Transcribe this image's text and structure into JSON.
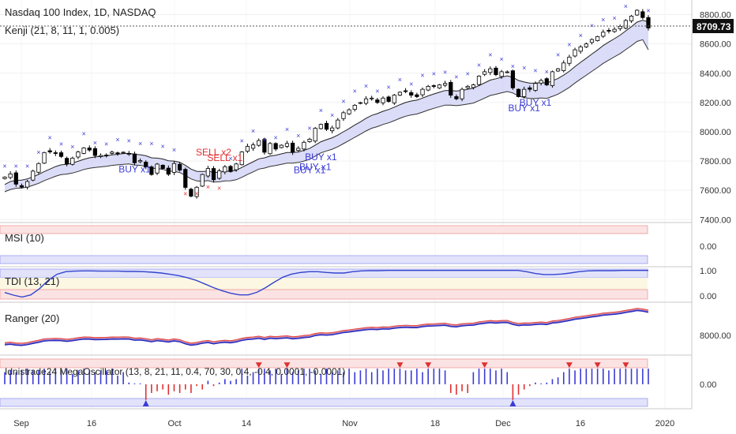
{
  "header": {
    "symbol_line": "Nasdaq 100 Index, 1D, NASDAQ",
    "study_line": "Kenji (21, 8, 11, 1, 0.005)"
  },
  "last_price": "8709.73",
  "colors": {
    "candle_up_fill": "#ffffff",
    "candle_down_fill": "#000000",
    "marker_blue": "#3b3bd6",
    "marker_red": "#e03030",
    "band_fill": "#cfd0f5",
    "band_fill_green": "#cfeccf",
    "pos_bar": "#3b3bd6",
    "neg_bar": "#e03030"
  },
  "chart_data": [
    {
      "type": "candlestick",
      "title": "Nasdaq 100 Index, 1D, NASDAQ",
      "ylim": [
        7380,
        8900
      ],
      "y_ticks": [
        "7400.00",
        "7600.00",
        "7800.00",
        "8000.00",
        "8200.00",
        "8400.00",
        "8600.00",
        "8800.00"
      ],
      "x_ticks": [
        "Sep",
        "16",
        "Oct",
        "14",
        "Nov",
        "18",
        "Dec",
        "16",
        "2020"
      ],
      "closes": [
        7690,
        7712,
        7642,
        7622,
        7660,
        7731,
        7783,
        7858,
        7862,
        7852,
        7831,
        7780,
        7820,
        7862,
        7889,
        7875,
        7838,
        7838,
        7840,
        7861,
        7850,
        7860,
        7851,
        7788,
        7803,
        7760,
        7708,
        7779,
        7749,
        7710,
        7783,
        7738,
        7620,
        7560,
        7621,
        7708,
        7749,
        7672,
        7733,
        7761,
        7728,
        7780,
        7862,
        7900,
        7910,
        7940,
        7860,
        7920,
        7882,
        7908,
        7920,
        7860,
        7887,
        7928,
        7949,
        8024,
        8050,
        8017,
        8026,
        8080,
        8130,
        8150,
        8181,
        8199,
        8225,
        8230,
        8200,
        8230,
        8207,
        8250,
        8270,
        8275,
        8250,
        8240,
        8290,
        8310,
        8311,
        8320,
        8330,
        8250,
        8225,
        8290,
        8310,
        8320,
        8380,
        8410,
        8430,
        8390,
        8410,
        8409,
        8300,
        8240,
        8290,
        8290,
        8330,
        8350,
        8320,
        8410,
        8430,
        8470,
        8510,
        8560,
        8580,
        8600,
        8630,
        8650,
        8680,
        8690,
        8700,
        8720,
        8760,
        8790,
        8830,
        8780,
        8709
      ],
      "upper_band": [
        7640,
        7660,
        7668,
        7670,
        7678,
        7692,
        7708,
        7728,
        7745,
        7762,
        7774,
        7778,
        7786,
        7798,
        7812,
        7822,
        7828,
        7832,
        7836,
        7842,
        7846,
        7851,
        7853,
        7846,
        7843,
        7836,
        7822,
        7820,
        7814,
        7802,
        7800,
        7792,
        7770,
        7745,
        7730,
        7728,
        7732,
        7722,
        7724,
        7730,
        7731,
        7738,
        7756,
        7776,
        7795,
        7815,
        7822,
        7834,
        7840,
        7849,
        7858,
        7858,
        7862,
        7873,
        7886,
        7909,
        7932,
        7946,
        7959,
        7977,
        8000,
        8022,
        8046,
        8068,
        8092,
        8112,
        8124,
        8140,
        8152,
        8168,
        8185,
        8200,
        8210,
        8216,
        8230,
        8245,
        8258,
        8270,
        8282,
        8282,
        8278,
        8283,
        8290,
        8298,
        8315,
        8334,
        8353,
        8362,
        8373,
        8382,
        8372,
        8350,
        8340,
        8332,
        8332,
        8336,
        8333,
        8348,
        8364,
        8387,
        8413,
        8445,
        8474,
        8502,
        8531,
        8559,
        8589,
        8613,
        8636,
        8660,
        8689,
        8718,
        8749,
        8762,
        8750
      ],
      "lower_band": [
        7590,
        7606,
        7614,
        7616,
        7622,
        7634,
        7648,
        7666,
        7681,
        7696,
        7707,
        7711,
        7718,
        7729,
        7742,
        7751,
        7756,
        7760,
        7764,
        7770,
        7774,
        7778,
        7780,
        7773,
        7771,
        7764,
        7751,
        7749,
        7743,
        7732,
        7730,
        7722,
        7701,
        7678,
        7664,
        7662,
        7666,
        7656,
        7658,
        7664,
        7665,
        7672,
        7689,
        7708,
        7726,
        7745,
        7752,
        7763,
        7769,
        7778,
        7786,
        7786,
        7790,
        7800,
        7812,
        7834,
        7856,
        7869,
        7881,
        7898,
        7919,
        7940,
        7962,
        7983,
        8005,
        8024,
        8035,
        8050,
        8061,
        8076,
        8092,
        8106,
        8115,
        8121,
        8134,
        8148,
        8160,
        8171,
        8182,
        8182,
        8178,
        8183,
        8189,
        8196,
        8212,
        8230,
        8248,
        8256,
        8266,
        8275,
        8265,
        8244,
        8234,
        8227,
        8227,
        8231,
        8228,
        8242,
        8257,
        8279,
        8303,
        8333,
        8360,
        8386,
        8413,
        8439,
        8467,
        8490,
        8512,
        8534,
        8561,
        8588,
        8617,
        8629,
        8560
      ],
      "annotations": [
        {
          "text": "BUY x1",
          "bar": 23,
          "kind": "buy"
        },
        {
          "text": "SELL x2",
          "bar": 37,
          "kind": "sell"
        },
        {
          "text": "SELL x1",
          "bar": 39,
          "kind": "sell"
        },
        {
          "text": "BUY x1",
          "bar": 54,
          "kind": "buy"
        },
        {
          "text": "BUY x1",
          "bar": 56,
          "kind": "buy"
        },
        {
          "text": "BUY x1",
          "bar": 55,
          "kind": "buy"
        },
        {
          "text": "BUY x1",
          "bar": 94,
          "kind": "buy"
        },
        {
          "text": "BUY x1",
          "bar": 92,
          "kind": "buy"
        }
      ]
    },
    {
      "type": "line",
      "title": "MSI (10)",
      "y_ticks": [
        "0.00"
      ]
    },
    {
      "type": "line",
      "title": "TDI (13, 21)",
      "y_ticks": [
        "1.00",
        "0.00"
      ],
      "ylim": [
        -0.1,
        1.05
      ],
      "values": [
        0.15,
        0.05,
        -0.02,
        0.06,
        0.3,
        0.62,
        0.85,
        0.95,
        0.97,
        0.98,
        0.98,
        0.97,
        0.97,
        0.97,
        0.96,
        0.96,
        0.95,
        0.93,
        0.9,
        0.85,
        0.8,
        0.72,
        0.62,
        0.48,
        0.34,
        0.22,
        0.12,
        0.06,
        0.06,
        0.16,
        0.34,
        0.55,
        0.74,
        0.86,
        0.92,
        0.95,
        0.95,
        0.92,
        0.9,
        0.9,
        0.95,
        0.98,
        0.99,
        0.99,
        1.0,
        1.0,
        1.0,
        1.0,
        1.0,
        1.0,
        1.0,
        1.0,
        1.0,
        1.0,
        1.0,
        1.0,
        1.0,
        1.0,
        1.0,
        1.0,
        0.95,
        0.88,
        0.84,
        0.84,
        0.86,
        0.9,
        0.95,
        0.98,
        0.99,
        0.99,
        0.99,
        1.0,
        1.0,
        1.0,
        1.0
      ]
    },
    {
      "type": "line",
      "title": "Ranger (20)",
      "y_ticks": [
        "8000.00"
      ]
    },
    {
      "type": "bar",
      "title": "Idnistrade24 MegaOscillator (13, 8, 21, 11, 0.4, 70, 30, 0.4, -0.4, 0.0001, -0.0001)",
      "y_ticks": [
        "0.00"
      ],
      "values": [
        0.7,
        0.8,
        0.7,
        0.8,
        0.9,
        0.8,
        0.8,
        0.9,
        0.7,
        0.9,
        0.8,
        0.9,
        0.6,
        0.8,
        0.9,
        0.8,
        0.7,
        0.8,
        0.8,
        0.9,
        0.5,
        0.7,
        0.1,
        0.05,
        0.05,
        -0.9,
        -0.5,
        -0.4,
        -0.3,
        -0.6,
        -0.4,
        -0.5,
        -0.3,
        -0.5,
        -0.1,
        -0.3,
        0.2,
        -0.1,
        0.1,
        0.3,
        0.2,
        0.3,
        0.9,
        0.5,
        0.7,
        0.9,
        0.9,
        0.8,
        0.9,
        0.6,
        0.9,
        0.7,
        0.8,
        0.9,
        0.9,
        0.8,
        0.6,
        0.9,
        0.7,
        0.8,
        0.7,
        0.9,
        0.7,
        0.8,
        0.9,
        0.7,
        0.9,
        0.8,
        0.9,
        0.9,
        0.9,
        0.8,
        0.8,
        0.9,
        0.7,
        0.9,
        0.9,
        0.9,
        0.8,
        -0.5,
        -0.6,
        -0.4,
        -0.5,
        0.7,
        0.9,
        0.9,
        0.9,
        0.8,
        0.9,
        0.7,
        -0.9,
        -0.6,
        -0.3,
        -0.1,
        0.1,
        0.05,
        0.1,
        0.3,
        0.4,
        0.7,
        0.9,
        0.8,
        0.9,
        0.9,
        0.9,
        0.9,
        0.9,
        0.8,
        0.9,
        0.9,
        0.9,
        0.9,
        0.9,
        0.9,
        0.9
      ]
    }
  ]
}
